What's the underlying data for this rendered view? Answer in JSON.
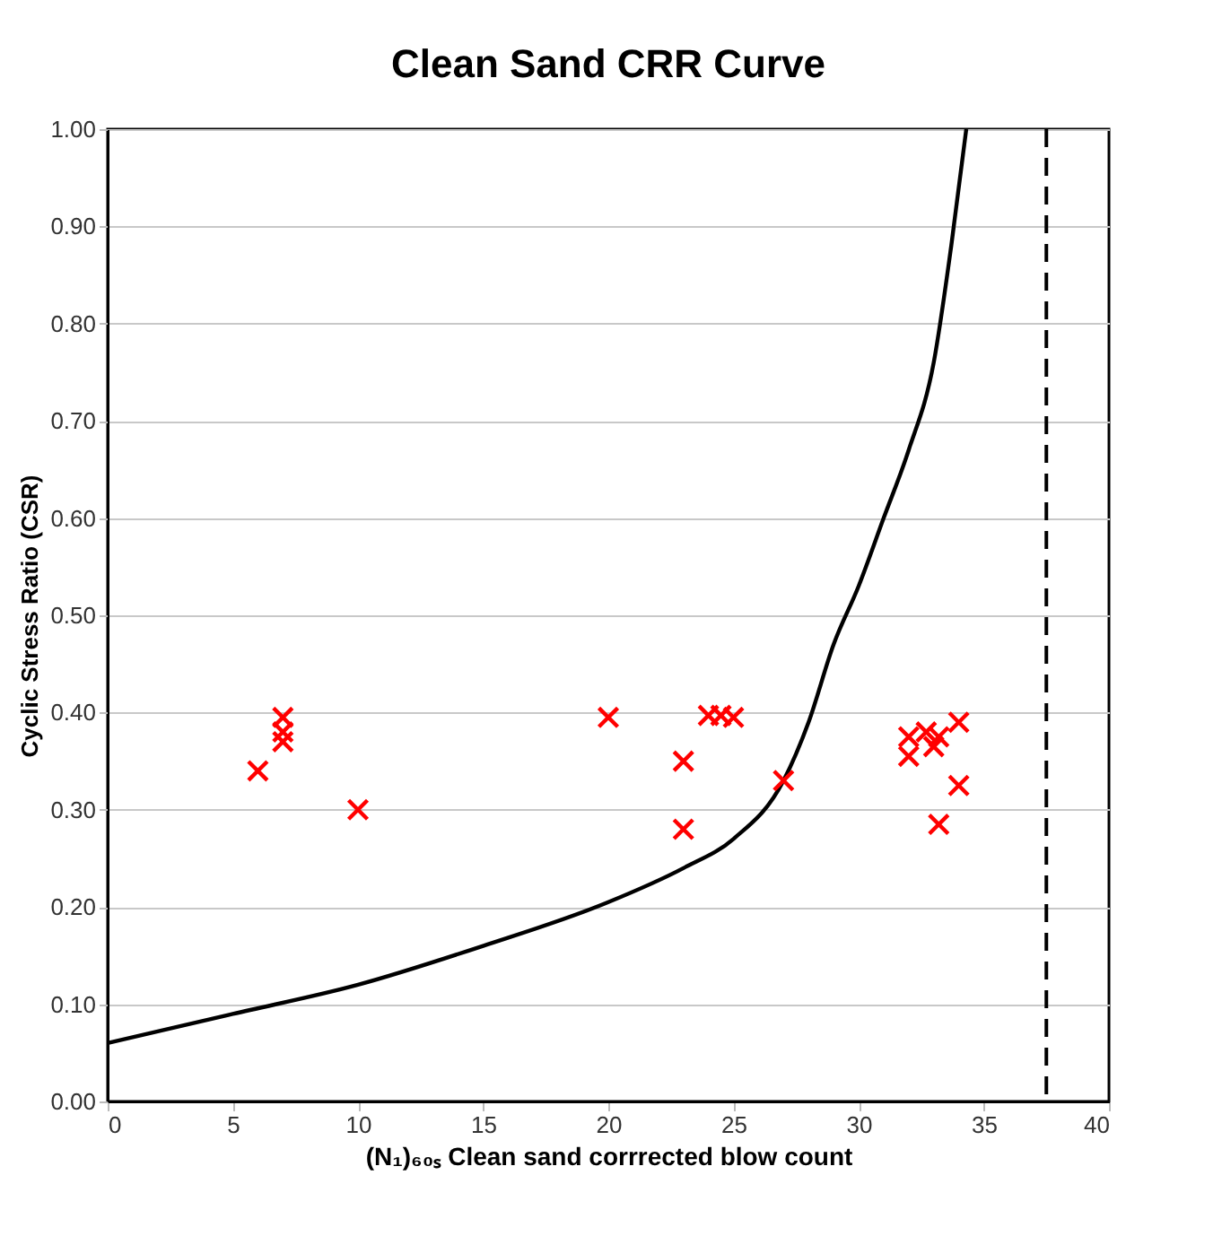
{
  "chart_data": {
    "type": "scatter",
    "title": "Clean Sand CRR Curve",
    "xlabel": "(N₁)₆₀ₛ Clean sand corrrected blow count",
    "ylabel": "Cyclic Stress Ratio (CSR)",
    "xlim": [
      0,
      40
    ],
    "ylim": [
      0,
      1
    ],
    "xticks": [
      0,
      5,
      10,
      15,
      20,
      25,
      30,
      35,
      40
    ],
    "yticks": [
      {
        "value": 0,
        "label": "0.00"
      },
      {
        "value": 0.1,
        "label": "0.10"
      },
      {
        "value": 0.2,
        "label": "0.20"
      },
      {
        "value": 0.3,
        "label": "0.30"
      },
      {
        "value": 0.4,
        "label": "0.40"
      },
      {
        "value": 0.5,
        "label": "0.50"
      },
      {
        "value": 0.6,
        "label": "0.60"
      },
      {
        "value": 0.7,
        "label": "0.70"
      },
      {
        "value": 0.8,
        "label": "0.80"
      },
      {
        "value": 0.9,
        "label": "0.90"
      },
      {
        "value": 1,
        "label": "1.00"
      }
    ],
    "grid": "y",
    "series": [
      {
        "type": "line",
        "color": "#000000",
        "line_style": "solid",
        "x": [
          0,
          5,
          10,
          15,
          20,
          23,
          25,
          27,
          28,
          29,
          30,
          31,
          32,
          33,
          33.7,
          34.3
        ],
        "values": [
          0.06,
          0.09,
          0.12,
          0.16,
          0.205,
          0.24,
          0.27,
          0.33,
          0.39,
          0.47,
          0.53,
          0.6,
          0.67,
          0.76,
          0.88,
          1.0
        ]
      },
      {
        "type": "scatter",
        "color": "#ff0000",
        "marker": "cross",
        "x": [
          6,
          7,
          7,
          7,
          10,
          20,
          23,
          23,
          24,
          24.5,
          25,
          27,
          32,
          32,
          32.7,
          33,
          33.2,
          33.2,
          34,
          34
        ],
        "values": [
          0.34,
          0.395,
          0.38,
          0.37,
          0.3,
          0.395,
          0.35,
          0.28,
          0.397,
          0.397,
          0.395,
          0.33,
          0.375,
          0.355,
          0.38,
          0.365,
          0.375,
          0.285,
          0.39,
          0.325
        ]
      }
    ],
    "ref_lines": [
      {
        "axis": "x",
        "value": 37.5,
        "color": "#000000",
        "line_style": "dashed"
      }
    ]
  }
}
